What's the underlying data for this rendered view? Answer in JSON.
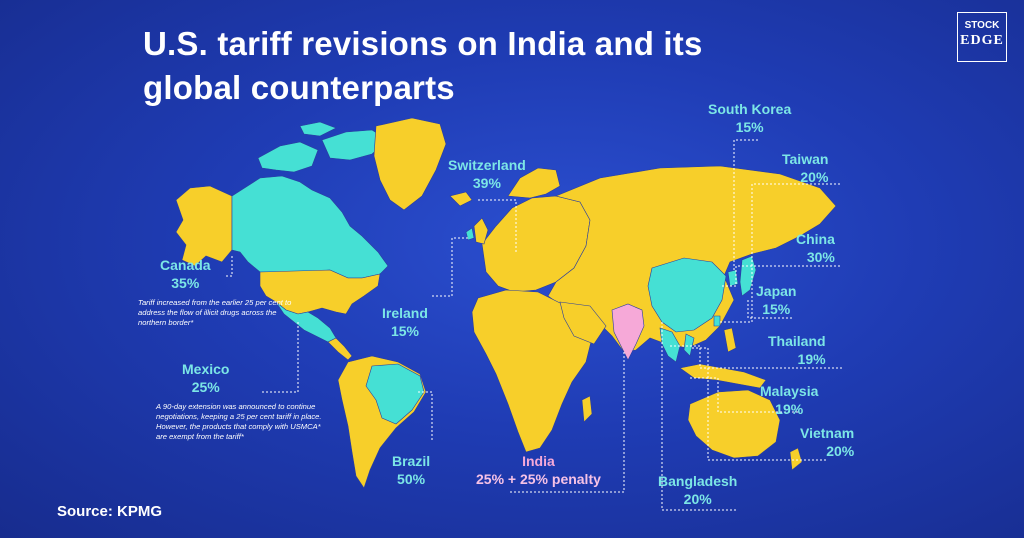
{
  "title": {
    "line1": "U.S. tariff revisions on India and its",
    "line2": "global counterparts"
  },
  "logo": {
    "line1": "STOCK",
    "line2": "EDGE"
  },
  "source": "Source: KPMG",
  "colors": {
    "background": "#1f3cb4",
    "land": "#f7cf2a",
    "tariff_country": "#45e0d4",
    "india": "#f6a9d8",
    "label": "#7ce6e6"
  },
  "countries": [
    {
      "name": "Canada",
      "tariff": "35%",
      "note": "Tariff increased from the earlier 25 per cent to address the flow of illicit drugs across the northern border*"
    },
    {
      "name": "Mexico",
      "tariff": "25%",
      "note": "A 90-day extension was announced to continue negotiations, keeping a 25 per cent tariff in place. However, the products that comply with USMCA* are exempt from the tariff*"
    },
    {
      "name": "Brazil",
      "tariff": "50%"
    },
    {
      "name": "Ireland",
      "tariff": "15%"
    },
    {
      "name": "Switzerland",
      "tariff": "39%"
    },
    {
      "name": "India",
      "tariff": "25% + 25% penalty"
    },
    {
      "name": "Bangladesh",
      "tariff": "20%"
    },
    {
      "name": "South Korea",
      "tariff": "15%"
    },
    {
      "name": "Taiwan",
      "tariff": "20%"
    },
    {
      "name": "China",
      "tariff": "30%"
    },
    {
      "name": "Japan",
      "tariff": "15%"
    },
    {
      "name": "Thailand",
      "tariff": "19%"
    },
    {
      "name": "Malaysia",
      "tariff": "19%"
    },
    {
      "name": "Vietnam",
      "tariff": "20%"
    }
  ]
}
